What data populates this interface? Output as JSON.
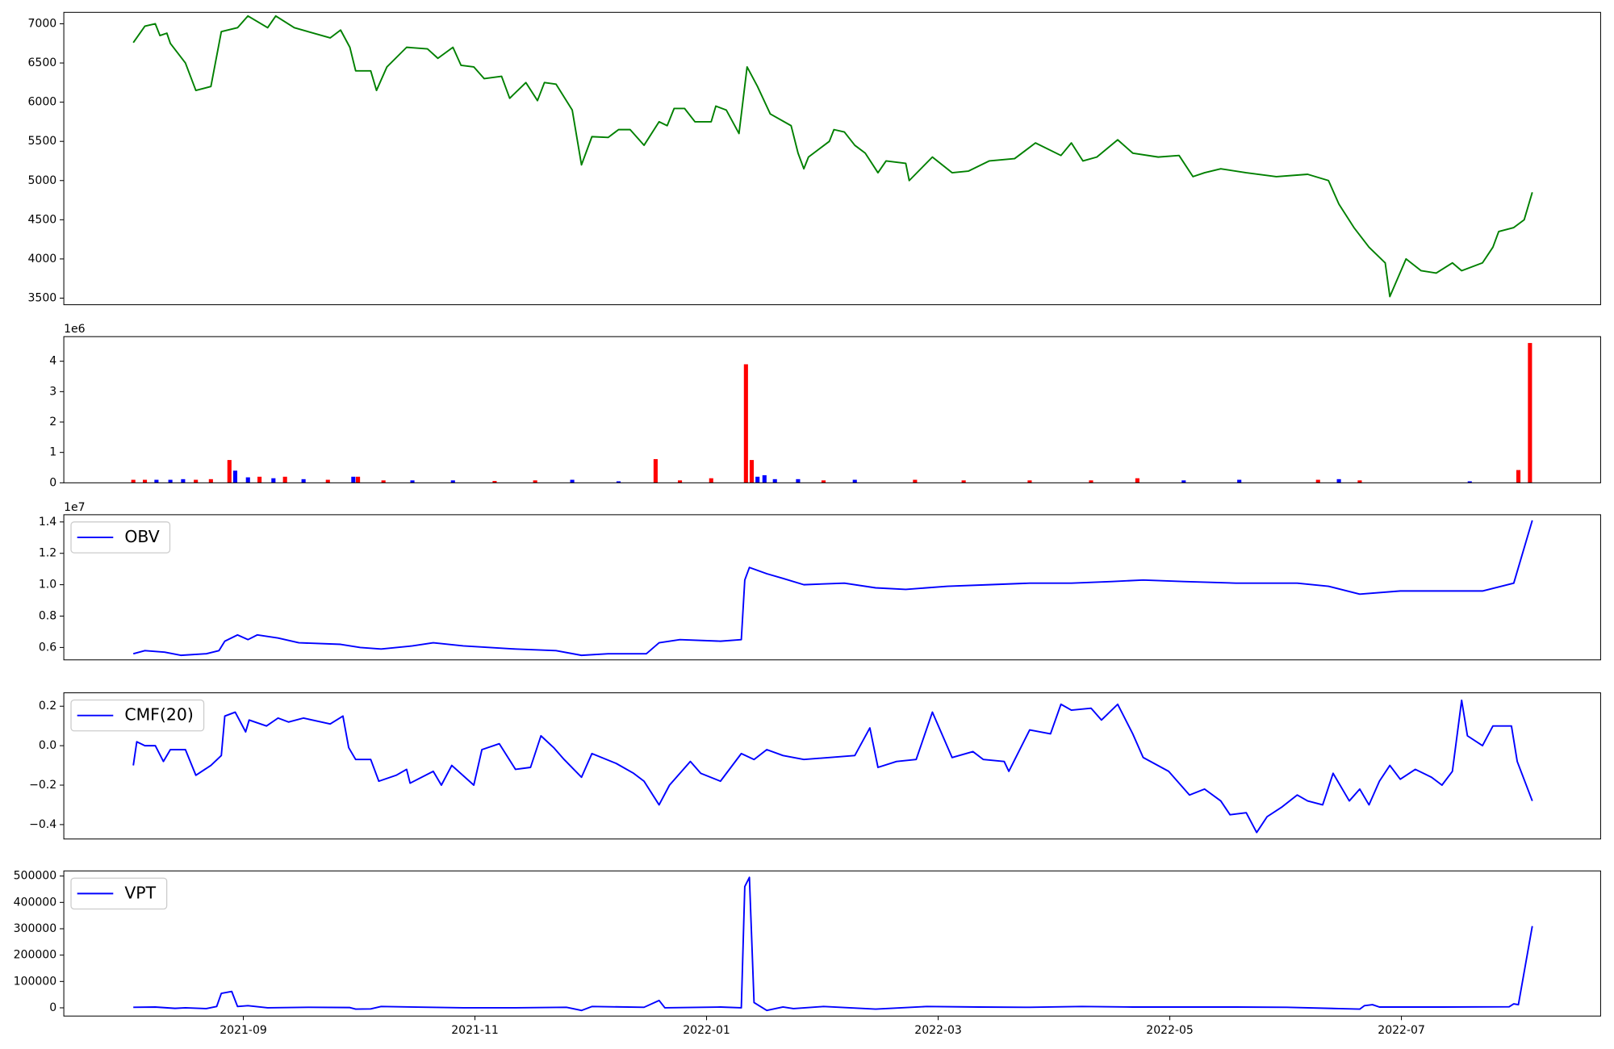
{
  "chart_data": [
    {
      "type": "line",
      "x": [
        -0.95,
        -0.85,
        -0.76,
        -0.72,
        -0.66,
        -0.63,
        -0.5,
        -0.41,
        -0.28,
        -0.19,
        -0.05,
        0.04,
        0.21,
        0.28,
        0.44,
        0.75,
        0.84,
        0.92,
        0.97,
        1.1,
        1.15,
        1.24,
        1.41,
        1.59,
        1.68,
        1.81,
        1.88,
        1.99,
        2.08,
        2.23,
        2.3,
        2.44,
        2.54,
        2.6,
        2.7,
        2.84,
        2.92,
        3.01,
        3.15,
        3.24,
        3.34,
        3.46,
        3.59,
        3.66,
        3.72,
        3.81,
        3.9,
        4.04,
        4.08,
        4.17,
        4.28,
        4.35,
        4.44,
        4.55,
        4.73,
        4.79,
        4.84,
        4.88,
        5.06,
        5.1,
        5.19,
        5.28,
        5.37,
        5.48,
        5.55,
        5.72,
        5.75,
        5.95,
        6.12,
        6.26,
        6.44,
        6.66,
        6.84,
        7.06,
        7.15,
        7.25,
        7.37,
        7.55,
        7.68,
        7.9,
        8.08,
        8.2,
        8.3,
        8.44,
        8.66,
        8.92,
        9.19,
        9.37,
        9.46,
        9.59,
        9.72,
        9.86,
        9.9,
        10.04,
        10.17,
        10.3,
        10.44,
        10.52,
        10.7,
        10.79,
        10.84,
        10.97,
        11.06,
        11.13
      ],
      "series": [
        {
          "color": "green",
          "values": [
            6760,
            6970,
            7000,
            6850,
            6880,
            6750,
            6500,
            6150,
            6200,
            6900,
            6950,
            7100,
            6950,
            7100,
            6950,
            6820,
            6920,
            6700,
            6400,
            6400,
            6150,
            6450,
            6700,
            6680,
            6560,
            6700,
            6470,
            6450,
            6300,
            6330,
            6050,
            6250,
            6020,
            6250,
            6230,
            5900,
            5200,
            5560,
            5550,
            5650,
            5650,
            5450,
            5750,
            5700,
            5920,
            5920,
            5750,
            5750,
            5950,
            5900,
            5600,
            6450,
            6200,
            5850,
            5700,
            5350,
            5150,
            5300,
            5500,
            5650,
            5620,
            5450,
            5350,
            5100,
            5250,
            5220,
            5000,
            5300,
            5100,
            5120,
            5250,
            5280,
            5480,
            5320,
            5480,
            5250,
            5300,
            5520,
            5350,
            5300,
            5320,
            5050,
            5100,
            5150,
            5100,
            5050,
            5080,
            5000,
            4700,
            4400,
            4150,
            3950,
            3520,
            4000,
            3850,
            3820,
            3950,
            3850,
            3950,
            4150,
            4350,
            4400,
            4500,
            4850
          ]
        }
      ],
      "xlim": [
        -1.55,
        11.72
      ],
      "ylim": [
        3416,
        7146
      ],
      "yticks": [
        3500,
        4000,
        4500,
        5000,
        5500,
        6000,
        6500,
        7000
      ]
    },
    {
      "type": "bar",
      "offset_label": "1e6",
      "x": [
        -0.95,
        -0.85,
        -0.75,
        -0.63,
        -0.52,
        -0.41,
        -0.28,
        -0.12,
        -0.07,
        0.04,
        0.14,
        0.26,
        0.36,
        0.52,
        0.73,
        0.95,
        0.99,
        1.21,
        1.46,
        1.81,
        2.17,
        2.52,
        2.84,
        3.24,
        3.56,
        3.77,
        4.04,
        4.34,
        4.39,
        4.44,
        4.5,
        4.59,
        4.79,
        5.01,
        5.28,
        5.8,
        6.22,
        6.79,
        7.32,
        7.72,
        8.12,
        8.6,
        9.28,
        9.46,
        9.64,
        10.59,
        11.01,
        11.11
      ],
      "values": [
        0.1,
        0.1,
        0.1,
        0.1,
        0.12,
        0.1,
        0.12,
        0.75,
        0.4,
        0.18,
        0.2,
        0.15,
        0.2,
        0.12,
        0.1,
        0.2,
        0.2,
        0.08,
        0.08,
        0.08,
        0.06,
        0.08,
        0.1,
        0.05,
        0.78,
        0.08,
        0.15,
        3.9,
        0.75,
        0.2,
        0.25,
        0.12,
        0.12,
        0.08,
        0.1,
        0.1,
        0.08,
        0.08,
        0.08,
        0.15,
        0.08,
        0.1,
        0.1,
        0.12,
        0.08,
        0.05,
        0.42,
        4.6
      ],
      "colors": [
        "red",
        "red",
        "blue",
        "blue",
        "blue",
        "red",
        "red",
        "red",
        "blue",
        "blue",
        "red",
        "blue",
        "red",
        "blue",
        "red",
        "blue",
        "red",
        "red",
        "blue",
        "blue",
        "red",
        "red",
        "blue",
        "blue",
        "red",
        "red",
        "red",
        "red",
        "red",
        "blue",
        "blue",
        "blue",
        "blue",
        "red",
        "blue",
        "red",
        "red",
        "red",
        "red",
        "red",
        "blue",
        "blue",
        "red",
        "blue",
        "red",
        "blue",
        "red",
        "red"
      ],
      "xlim": [
        -1.55,
        11.72
      ],
      "ylim": [
        0,
        4.81
      ],
      "yticks": [
        0,
        1,
        2,
        3,
        4
      ]
    },
    {
      "type": "line",
      "offset_label": "1e7",
      "legend": "upper left",
      "x": [
        -0.95,
        -0.85,
        -0.68,
        -0.54,
        -0.32,
        -0.21,
        -0.16,
        -0.05,
        0.04,
        0.12,
        0.3,
        0.48,
        0.84,
        1.01,
        1.19,
        1.46,
        1.64,
        1.9,
        2.35,
        2.7,
        2.92,
        3.15,
        3.48,
        3.59,
        3.77,
        4.12,
        4.3,
        4.33,
        4.37,
        4.52,
        4.66,
        4.84,
        5.19,
        5.46,
        5.72,
        6.08,
        6.44,
        6.79,
        7.15,
        7.5,
        7.77,
        8.12,
        8.57,
        9.1,
        9.37,
        9.64,
        9.99,
        10.35,
        10.7,
        10.97,
        11.13
      ],
      "series": [
        {
          "name": "OBV",
          "color": "blue",
          "values": [
            0.56,
            0.58,
            0.57,
            0.55,
            0.56,
            0.58,
            0.64,
            0.68,
            0.65,
            0.68,
            0.66,
            0.63,
            0.62,
            0.6,
            0.59,
            0.61,
            0.63,
            0.61,
            0.59,
            0.58,
            0.55,
            0.56,
            0.56,
            0.63,
            0.65,
            0.64,
            0.65,
            1.03,
            1.11,
            1.07,
            1.04,
            1.0,
            1.01,
            0.98,
            0.97,
            0.99,
            1.0,
            1.01,
            1.01,
            1.02,
            1.03,
            1.02,
            1.01,
            1.01,
            0.99,
            0.94,
            0.96,
            0.96,
            0.96,
            1.01,
            1.41
          ]
        }
      ],
      "xlim": [
        -1.55,
        11.72
      ],
      "ylim": [
        0.521,
        1.446
      ],
      "yticks": [
        {
          "value": 0.6,
          "label": "0.6"
        },
        {
          "value": 0.8,
          "label": "0.8"
        },
        {
          "value": 1.0,
          "label": "1.0"
        },
        {
          "value": 1.2,
          "label": "1.2"
        },
        {
          "value": 1.4,
          "label": "1.4"
        }
      ]
    },
    {
      "type": "line",
      "legend": "upper left",
      "x": [
        -0.95,
        -0.92,
        -0.85,
        -0.76,
        -0.69,
        -0.63,
        -0.5,
        -0.41,
        -0.28,
        -0.19,
        -0.16,
        -0.07,
        0.02,
        0.05,
        0.2,
        0.3,
        0.39,
        0.52,
        0.75,
        0.86,
        0.91,
        0.97,
        1.1,
        1.17,
        1.32,
        1.41,
        1.44,
        1.64,
        1.71,
        1.8,
        1.99,
        2.06,
        2.21,
        2.35,
        2.48,
        2.57,
        2.68,
        2.77,
        2.92,
        3.01,
        3.22,
        3.37,
        3.46,
        3.59,
        3.68,
        3.86,
        3.95,
        4.12,
        4.3,
        4.41,
        4.52,
        4.66,
        4.84,
        5.28,
        5.41,
        5.48,
        5.64,
        5.81,
        5.95,
        6.12,
        6.3,
        6.39,
        6.57,
        6.61,
        6.79,
        6.97,
        7.06,
        7.15,
        7.32,
        7.41,
        7.55,
        7.68,
        7.77,
        7.99,
        8.17,
        8.3,
        8.44,
        8.52,
        8.66,
        8.75,
        8.84,
        8.97,
        9.1,
        9.19,
        9.32,
        9.41,
        9.55,
        9.64,
        9.72,
        9.81,
        9.9,
        9.99,
        10.12,
        10.26,
        10.35,
        10.44,
        10.52,
        10.57,
        10.7,
        10.79,
        10.95,
        11.0,
        11.13
      ],
      "series": [
        {
          "name": "CMF(20)",
          "color": "blue",
          "values": [
            -0.1,
            0.02,
            0.0,
            0.0,
            -0.08,
            -0.02,
            -0.02,
            -0.15,
            -0.1,
            -0.05,
            0.15,
            0.17,
            0.07,
            0.13,
            0.1,
            0.14,
            0.12,
            0.14,
            0.11,
            0.15,
            -0.01,
            -0.07,
            -0.07,
            -0.18,
            -0.15,
            -0.12,
            -0.19,
            -0.13,
            -0.2,
            -0.1,
            -0.2,
            -0.02,
            0.01,
            -0.12,
            -0.11,
            0.05,
            -0.01,
            -0.07,
            -0.16,
            -0.04,
            -0.09,
            -0.14,
            -0.18,
            -0.3,
            -0.2,
            -0.08,
            -0.14,
            -0.18,
            -0.04,
            -0.07,
            -0.02,
            -0.05,
            -0.07,
            -0.05,
            0.09,
            -0.11,
            -0.08,
            -0.07,
            0.17,
            -0.06,
            -0.03,
            -0.07,
            -0.08,
            -0.13,
            0.08,
            0.06,
            0.21,
            0.18,
            0.19,
            0.13,
            0.21,
            0.06,
            -0.06,
            -0.13,
            -0.25,
            -0.22,
            -0.28,
            -0.35,
            -0.34,
            -0.44,
            -0.36,
            -0.31,
            -0.25,
            -0.28,
            -0.3,
            -0.14,
            -0.28,
            -0.22,
            -0.3,
            -0.18,
            -0.1,
            -0.17,
            -0.12,
            -0.16,
            -0.2,
            -0.13,
            0.23,
            0.05,
            0.0,
            0.1,
            0.1,
            -0.08,
            -0.28
          ]
        }
      ],
      "xlim": [
        -1.55,
        11.72
      ],
      "ylim": [
        -0.473,
        0.268
      ],
      "yticks": [
        {
          "value": -0.4,
          "label": "−0.4"
        },
        {
          "value": -0.2,
          "label": "−0.2"
        },
        {
          "value": 0,
          "label": "0.0"
        },
        {
          "value": 0.2,
          "label": "0.2"
        }
      ]
    },
    {
      "type": "line",
      "legend": "upper left",
      "x": [
        -0.95,
        -0.76,
        -0.59,
        -0.5,
        -0.32,
        -0.23,
        -0.19,
        -0.1,
        -0.05,
        0.04,
        0.21,
        0.57,
        0.92,
        0.97,
        1.1,
        1.19,
        1.9,
        2.35,
        2.79,
        2.92,
        3.01,
        3.46,
        3.59,
        3.64,
        4.12,
        4.3,
        4.33,
        4.37,
        4.41,
        4.52,
        4.66,
        4.75,
        5.01,
        5.46,
        5.9,
        6.35,
        6.79,
        7.24,
        7.68,
        8.57,
        9.01,
        9.46,
        9.64,
        9.68,
        9.75,
        9.81,
        10.35,
        10.93,
        10.97,
        11.01,
        11.13
      ],
      "series": [
        {
          "name": "VPT",
          "color": "blue",
          "values": [
            2000,
            3000,
            -2000,
            0,
            -3000,
            5000,
            55000,
            62000,
            5000,
            8000,
            0,
            2000,
            1000,
            -5000,
            -4000,
            5000,
            0,
            0,
            2000,
            -10000,
            5000,
            2000,
            28000,
            0,
            3000,
            0,
            460000,
            495000,
            20000,
            -10000,
            3000,
            -3000,
            5000,
            -5000,
            5000,
            3000,
            2000,
            5000,
            3000,
            3000,
            2000,
            -3000,
            -5000,
            8000,
            12000,
            3000,
            3000,
            4000,
            15000,
            12000,
            310000
          ]
        }
      ],
      "xlim": [
        -1.55,
        11.72
      ],
      "ylim": [
        -31250,
        519500
      ],
      "yticks": [
        0,
        100000,
        200000,
        300000,
        400000,
        500000
      ],
      "xticks": [
        {
          "value": 0,
          "label": "2021-09"
        },
        {
          "value": 2,
          "label": "2021-11"
        },
        {
          "value": 4,
          "label": "2022-01"
        },
        {
          "value": 6,
          "label": "2022-03"
        },
        {
          "value": 8,
          "label": "2022-05"
        },
        {
          "value": 10,
          "label": "2022-07"
        }
      ]
    }
  ]
}
